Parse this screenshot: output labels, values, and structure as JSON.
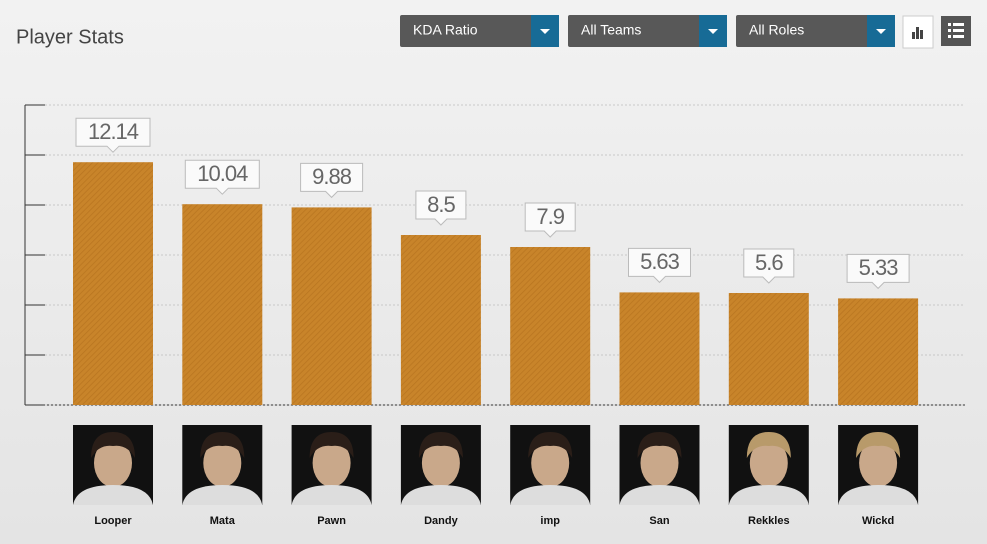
{
  "controls": [
    "KDA Ratio",
    "All Teams",
    "All Roles"
  ],
  "chart_data": {
    "type": "bar",
    "title": "Player Stats",
    "categories": [
      "Looper",
      "Mata",
      "Pawn",
      "Dandy",
      "imp",
      "San",
      "Rekkles",
      "Wickd"
    ],
    "values": [
      12.14,
      10.04,
      9.88,
      8.5,
      7.9,
      5.63,
      5.6,
      5.33
    ],
    "color": "#c8842a",
    "ylim": [
      0,
      15
    ],
    "yticks": [
      0,
      2.5,
      5,
      7.5,
      10,
      12.5,
      15
    ],
    "grid": true
  }
}
